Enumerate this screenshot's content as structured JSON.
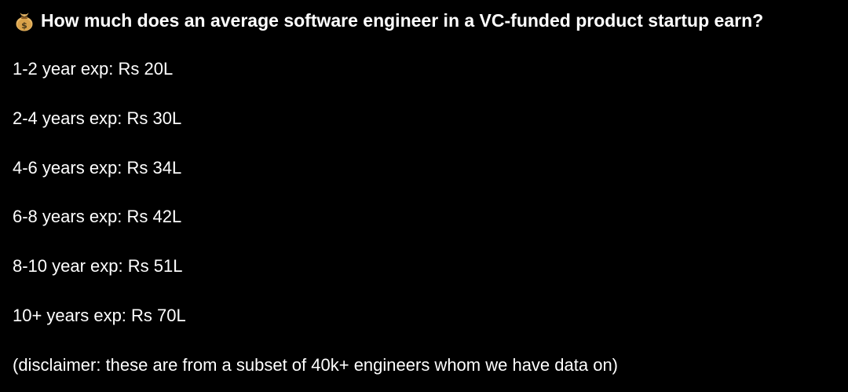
{
  "post": {
    "icon": "money-bag-icon",
    "headline": "How much does an average software engineer in a VC-funded product startup earn?",
    "lines": [
      "1-2 year exp: Rs 20L",
      "2-4 years exp: Rs 30L",
      "4-6 years exp: Rs 34L",
      "6-8 years exp: Rs 42L",
      "8-10 year exp: Rs 51L",
      "10+ years exp: Rs 70L"
    ],
    "disclaimer": "(disclaimer: these are from a subset of 40k+ engineers whom we have data on)"
  }
}
